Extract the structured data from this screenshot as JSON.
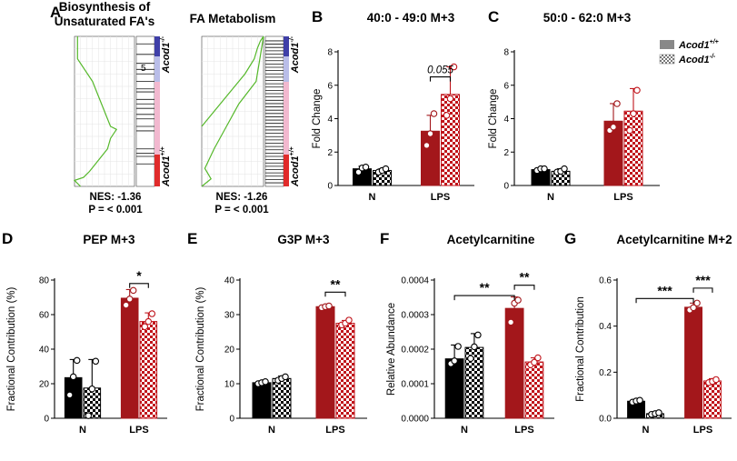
{
  "panels": {
    "A": {
      "letter": "A"
    },
    "B": {
      "letter": "B"
    },
    "C": {
      "letter": "C"
    },
    "D": {
      "letter": "D"
    },
    "E": {
      "letter": "E"
    },
    "F": {
      "letter": "F"
    },
    "G": {
      "letter": "G"
    }
  },
  "gsea": [
    {
      "title_line1": "Biosynthesis of",
      "title_line2": "Unsaturated FA's",
      "nes": "NES: -1.36",
      "p": "P = < 0.001",
      "marker": "5"
    },
    {
      "title_line1": "FA Metabolism",
      "title_line2": "",
      "nes": "NES: -1.26",
      "p": "P = < 0.001",
      "marker": ""
    }
  ],
  "gsea_group_labels": {
    "top": "Acod1",
    "top_sup": "-/-",
    "bottom": "Acod1",
    "bottom_sup": "+/+"
  },
  "legend": {
    "wt": {
      "text": "Acod1",
      "sup": "+/+"
    },
    "ko": {
      "text": "Acod1",
      "sup": "-/-"
    }
  },
  "colors": {
    "wt_n": "#000000",
    "ko_n_check": "#000000",
    "wt_lps": "#a3171b",
    "ko_lps_check": "#c0141b",
    "gsea_line": "#55b82a",
    "gsea_blue": "#3f3fa8",
    "gsea_red": "#e02b2b",
    "gsea_pink": "#f2b8cf"
  },
  "chart_data": [
    {
      "id": "B",
      "type": "bar",
      "title": "40:0 - 49:0 M+3",
      "ylabel": "Fold Change",
      "categories": [
        "N",
        "LPS"
      ],
      "ylim": [
        0,
        8
      ],
      "yticks": [
        0,
        2,
        4,
        6,
        8
      ],
      "tick_labels": [
        "0",
        "2",
        "4",
        "6",
        "8"
      ],
      "series": [
        {
          "name": "Acod1+/+",
          "values": [
            1.0,
            3.25
          ],
          "err": [
            0.15,
            0.95
          ],
          "points": [
            [
              0.8,
              1.05,
              1.1
            ],
            [
              2.4,
              3.1,
              4.3
            ]
          ]
        },
        {
          "name": "Acod1-/-",
          "values": [
            0.9,
            5.45
          ],
          "err": [
            0.1,
            1.65
          ],
          "points": [
            [
              0.8,
              0.9,
              1.0
            ],
            [
              4.2,
              5.2,
              7.1
            ]
          ]
        }
      ],
      "annotations": [
        {
          "text": "0.055",
          "between": [
            [
              1,
              0
            ],
            [
              1,
              1
            ]
          ],
          "y": 6.5,
          "italic": true
        }
      ]
    },
    {
      "id": "C",
      "type": "bar",
      "title": "50:0 - 62:0 M+3",
      "ylabel": "Fold Change",
      "categories": [
        "N",
        "LPS"
      ],
      "ylim": [
        0,
        8
      ],
      "yticks": [
        0,
        2,
        4,
        6,
        8
      ],
      "tick_labels": [
        "0",
        "2",
        "4",
        "6",
        "8"
      ],
      "series": [
        {
          "name": "Acod1+/+",
          "values": [
            0.95,
            3.85
          ],
          "err": [
            0.1,
            1.05
          ],
          "points": [
            [
              0.9,
              1.0,
              1.0
            ],
            [
              3.3,
              3.5,
              4.9
            ]
          ]
        },
        {
          "name": "Acod1-/-",
          "values": [
            0.85,
            4.45
          ],
          "err": [
            0.15,
            1.35
          ],
          "points": [
            [
              0.8,
              0.85,
              1.0
            ],
            [
              3.3,
              4.3,
              5.7
            ]
          ]
        }
      ],
      "annotations": []
    },
    {
      "id": "D",
      "type": "bar",
      "title": "PEP M+3",
      "ylabel": "Fractional Contribution (%)",
      "categories": [
        "N",
        "LPS"
      ],
      "ylim": [
        0,
        80
      ],
      "yticks": [
        0,
        20,
        40,
        60,
        80
      ],
      "tick_labels": [
        "0",
        "20",
        "40",
        "60",
        "80"
      ],
      "series": [
        {
          "name": "Acod1+/+",
          "values": [
            23.5,
            69.5
          ],
          "err": [
            10.5,
            5.0
          ],
          "points": [
            [
              13.5,
              24.0,
              33.5
            ],
            [
              65.5,
              69.0,
              74.0
            ]
          ]
        },
        {
          "name": "Acod1-/-",
          "values": [
            17.5,
            56.0
          ],
          "err": [
            16.5,
            5.0
          ],
          "points": [
            [
              1.5,
              17.0,
              33.0
            ],
            [
              53.0,
              56.0,
              60.5
            ]
          ]
        }
      ],
      "annotations": [
        {
          "text": "*",
          "between": [
            [
              1,
              0
            ],
            [
              1,
              1
            ]
          ],
          "y": 78
        }
      ]
    },
    {
      "id": "E",
      "type": "bar",
      "title": "G3P M+3",
      "ylabel": "Fractional Contribution (%)",
      "categories": [
        "N",
        "LPS"
      ],
      "ylim": [
        0,
        40
      ],
      "yticks": [
        0,
        10,
        20,
        30,
        40
      ],
      "tick_labels": [
        "0",
        "10",
        "20",
        "30",
        "40"
      ],
      "series": [
        {
          "name": "Acod1+/+",
          "values": [
            10.3,
            32.3
          ],
          "err": [
            0.5,
            0.3
          ],
          "points": [
            [
              10.0,
              10.3,
              10.6
            ],
            [
              32.0,
              32.3,
              32.5
            ]
          ]
        },
        {
          "name": "Acod1-/-",
          "values": [
            11.5,
            27.5
          ],
          "err": [
            0.7,
            0.8
          ],
          "points": [
            [
              11.0,
              11.5,
              12.0
            ],
            [
              27.0,
              27.5,
              28.4
            ]
          ]
        }
      ],
      "annotations": [
        {
          "text": "**",
          "between": [
            [
              1,
              0
            ],
            [
              1,
              1
            ]
          ],
          "y": 36.5
        }
      ]
    },
    {
      "id": "F",
      "type": "bar",
      "title": "Acetylcarnitine",
      "ylabel": "Relative Abundance",
      "categories": [
        "N",
        "LPS"
      ],
      "ylim": [
        0,
        0.0004
      ],
      "yticks": [
        0,
        0.0001,
        0.0002,
        0.0003,
        0.0004
      ],
      "tick_labels": [
        "0.0000",
        "0.0001",
        "0.0002",
        "0.0003",
        "0.0004"
      ],
      "series": [
        {
          "name": "Acod1+/+",
          "values": [
            0.000172,
            0.000318
          ],
          "err": [
            4e-05,
            3.3e-05
          ],
          "points": [
            [
              0.000158,
              0.000166,
              0.000208
            ],
            [
              0.000278,
              0.000333,
              0.000342
            ]
          ]
        },
        {
          "name": "Acod1-/-",
          "values": [
            0.000205,
            0.000163
          ],
          "err": [
            4e-05,
            1.2e-05
          ],
          "points": [
            [
              0.000173,
              0.000207,
              0.000241
            ],
            [
              0.000155,
              0.000162,
              0.000175
            ]
          ]
        }
      ],
      "annotations": [
        {
          "text": "**",
          "between": [
            [
              0,
              0
            ],
            [
              1,
              0
            ]
          ],
          "y": 0.000355
        },
        {
          "text": "**",
          "between": [
            [
              1,
              0
            ],
            [
              1,
              1
            ]
          ],
          "y": 0.000385
        }
      ]
    },
    {
      "id": "G",
      "type": "bar",
      "title": "Acetylcarnitine M+2",
      "ylabel": "Fractional Contribution",
      "categories": [
        "N",
        "LPS"
      ],
      "ylim": [
        0,
        0.6
      ],
      "yticks": [
        0,
        0.2,
        0.4,
        0.6
      ],
      "tick_labels": [
        "0.0",
        "0.2",
        "0.4",
        "0.6"
      ],
      "series": [
        {
          "name": "Acod1+/+",
          "values": [
            0.074,
            0.482
          ],
          "err": [
            0.007,
            0.018
          ],
          "points": [
            [
              0.07,
              0.075,
              0.078
            ],
            [
              0.47,
              0.48,
              0.5
            ]
          ]
        },
        {
          "name": "Acod1-/-",
          "values": [
            0.02,
            0.162
          ],
          "err": [
            0.004,
            0.01
          ],
          "points": [
            [
              0.017,
              0.02,
              0.024
            ],
            [
              0.155,
              0.16,
              0.168
            ]
          ]
        }
      ],
      "annotations": [
        {
          "text": "***",
          "between": [
            [
              0,
              0
            ],
            [
              1,
              0
            ]
          ],
          "y": 0.52
        },
        {
          "text": "***",
          "between": [
            [
              1,
              0
            ],
            [
              1,
              1
            ]
          ],
          "y": 0.565
        }
      ]
    }
  ]
}
